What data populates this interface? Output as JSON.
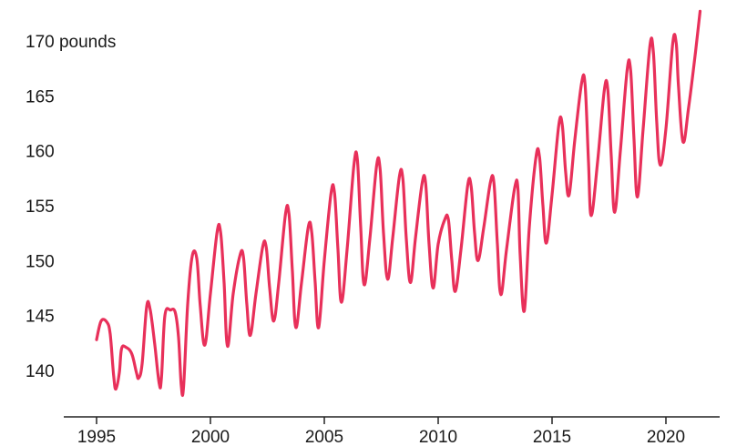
{
  "chart_data": {
    "type": "line",
    "title": "",
    "xlabel": "",
    "ylabel": "",
    "y_unit": "pounds",
    "xlim": [
      1995,
      2022
    ],
    "ylim": [
      137,
      172
    ],
    "x_ticks": [
      {
        "value": 1995,
        "label": "1995"
      },
      {
        "value": 2000,
        "label": "2000"
      },
      {
        "value": 2005,
        "label": "2005"
      },
      {
        "value": 2010,
        "label": "2010"
      },
      {
        "value": 2015,
        "label": "2015"
      },
      {
        "value": 2020,
        "label": "2020"
      }
    ],
    "y_ticks": [
      {
        "value": 140,
        "label": "140"
      },
      {
        "value": 145,
        "label": "145"
      },
      {
        "value": 150,
        "label": "150"
      },
      {
        "value": 155,
        "label": "155"
      },
      {
        "value": 160,
        "label": "160"
      },
      {
        "value": 165,
        "label": "165"
      },
      {
        "value": 170,
        "label": "170 pounds"
      }
    ],
    "grid": false,
    "legend": "none",
    "line_color": "#e8305a",
    "series": [
      {
        "points": [
          [
            1995.0,
            142.8
          ],
          [
            1995.2,
            144.5
          ],
          [
            1995.45,
            144.4
          ],
          [
            1995.6,
            143.3
          ],
          [
            1995.75,
            139.5
          ],
          [
            1995.85,
            138.3
          ],
          [
            1996.0,
            139.8
          ],
          [
            1996.1,
            142.0
          ],
          [
            1996.3,
            142.1
          ],
          [
            1996.55,
            141.5
          ],
          [
            1996.75,
            139.8
          ],
          [
            1996.85,
            139.3
          ],
          [
            1997.0,
            140.6
          ],
          [
            1997.2,
            145.8
          ],
          [
            1997.35,
            145.6
          ],
          [
            1997.55,
            142.5
          ],
          [
            1997.75,
            138.8
          ],
          [
            1997.85,
            139.3
          ],
          [
            1998.0,
            145.0
          ],
          [
            1998.25,
            145.5
          ],
          [
            1998.45,
            145.3
          ],
          [
            1998.6,
            143.0
          ],
          [
            1998.72,
            138.6
          ],
          [
            1998.82,
            138.5
          ],
          [
            1999.0,
            146.0
          ],
          [
            1999.2,
            150.4
          ],
          [
            1999.4,
            150.2
          ],
          [
            1999.55,
            146.0
          ],
          [
            1999.75,
            142.3
          ],
          [
            2000.0,
            147.0
          ],
          [
            2000.3,
            152.7
          ],
          [
            2000.45,
            152.5
          ],
          [
            2000.6,
            148.0
          ],
          [
            2000.75,
            142.2
          ],
          [
            2001.0,
            147.0
          ],
          [
            2001.3,
            150.5
          ],
          [
            2001.45,
            150.3
          ],
          [
            2001.6,
            146.0
          ],
          [
            2001.75,
            143.2
          ],
          [
            2002.0,
            147.0
          ],
          [
            2002.3,
            151.3
          ],
          [
            2002.45,
            151.2
          ],
          [
            2002.6,
            147.5
          ],
          [
            2002.78,
            144.5
          ],
          [
            2003.0,
            148.0
          ],
          [
            2003.3,
            154.3
          ],
          [
            2003.45,
            154.2
          ],
          [
            2003.6,
            149.0
          ],
          [
            2003.75,
            143.9
          ],
          [
            2004.0,
            148.0
          ],
          [
            2004.3,
            153.1
          ],
          [
            2004.45,
            152.5
          ],
          [
            2004.6,
            148.0
          ],
          [
            2004.75,
            143.9
          ],
          [
            2005.0,
            150.0
          ],
          [
            2005.3,
            156.2
          ],
          [
            2005.45,
            156.1
          ],
          [
            2005.6,
            151.0
          ],
          [
            2005.75,
            146.2
          ],
          [
            2006.0,
            151.0
          ],
          [
            2006.3,
            158.7
          ],
          [
            2006.45,
            159.2
          ],
          [
            2006.6,
            153.0
          ],
          [
            2006.75,
            147.8
          ],
          [
            2007.0,
            152.0
          ],
          [
            2007.3,
            158.7
          ],
          [
            2007.45,
            158.3
          ],
          [
            2007.6,
            152.5
          ],
          [
            2007.78,
            148.3
          ],
          [
            2008.0,
            152.0
          ],
          [
            2008.3,
            157.7
          ],
          [
            2008.45,
            157.4
          ],
          [
            2008.6,
            152.0
          ],
          [
            2008.78,
            148.0
          ],
          [
            2009.0,
            152.0
          ],
          [
            2009.3,
            157.1
          ],
          [
            2009.45,
            157.0
          ],
          [
            2009.6,
            151.5
          ],
          [
            2009.78,
            147.5
          ],
          [
            2010.0,
            151.5
          ],
          [
            2010.3,
            153.8
          ],
          [
            2010.45,
            153.7
          ],
          [
            2010.6,
            150.0
          ],
          [
            2010.75,
            147.2
          ],
          [
            2011.0,
            151.0
          ],
          [
            2011.3,
            156.9
          ],
          [
            2011.45,
            156.7
          ],
          [
            2011.6,
            152.5
          ],
          [
            2011.75,
            150.0
          ],
          [
            2012.0,
            153.0
          ],
          [
            2012.3,
            157.2
          ],
          [
            2012.45,
            157.0
          ],
          [
            2012.6,
            151.5
          ],
          [
            2012.75,
            146.9
          ],
          [
            2013.0,
            151.0
          ],
          [
            2013.35,
            156.5
          ],
          [
            2013.5,
            156.6
          ],
          [
            2013.6,
            150.5
          ],
          [
            2013.78,
            145.4
          ],
          [
            2014.0,
            153.0
          ],
          [
            2014.3,
            159.5
          ],
          [
            2014.45,
            159.4
          ],
          [
            2014.6,
            155.0
          ],
          [
            2014.75,
            151.6
          ],
          [
            2015.0,
            156.0
          ],
          [
            2015.3,
            162.4
          ],
          [
            2015.45,
            162.3
          ],
          [
            2015.6,
            158.0
          ],
          [
            2015.75,
            156.0
          ],
          [
            2016.0,
            161.0
          ],
          [
            2016.3,
            166.2
          ],
          [
            2016.45,
            166.0
          ],
          [
            2016.6,
            159.0
          ],
          [
            2016.72,
            154.1
          ],
          [
            2017.0,
            159.0
          ],
          [
            2017.3,
            165.6
          ],
          [
            2017.45,
            165.5
          ],
          [
            2017.6,
            159.5
          ],
          [
            2017.75,
            154.4
          ],
          [
            2018.0,
            160.0
          ],
          [
            2018.3,
            167.4
          ],
          [
            2018.45,
            167.3
          ],
          [
            2018.6,
            161.0
          ],
          [
            2018.75,
            155.8
          ],
          [
            2019.0,
            162.0
          ],
          [
            2019.3,
            169.6
          ],
          [
            2019.45,
            168.9
          ],
          [
            2019.6,
            162.5
          ],
          [
            2019.75,
            158.7
          ],
          [
            2020.0,
            162.0
          ],
          [
            2020.3,
            169.8
          ],
          [
            2020.45,
            169.8
          ],
          [
            2020.55,
            166.0
          ],
          [
            2020.75,
            160.8
          ],
          [
            2021.0,
            164.0
          ],
          [
            2021.3,
            169.0
          ],
          [
            2021.5,
            172.7
          ]
        ]
      }
    ]
  }
}
